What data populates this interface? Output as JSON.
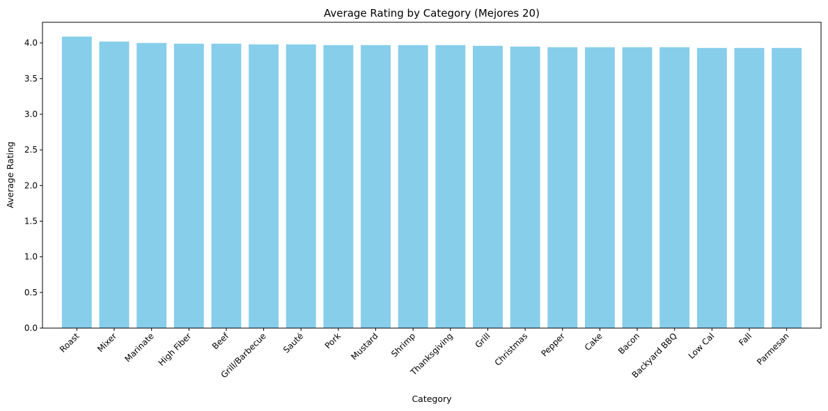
{
  "chart_data": {
    "type": "bar",
    "title": "Average Rating by Category (Mejores 20)",
    "xlabel": "Category",
    "ylabel": "Average Rating",
    "ylim": [
      0,
      4.29
    ],
    "yticks": [
      0.0,
      0.5,
      1.0,
      1.5,
      2.0,
      2.5,
      3.0,
      3.5,
      4.0
    ],
    "ytick_labels": [
      "0.0",
      "0.5",
      "1.0",
      "1.5",
      "2.0",
      "2.5",
      "3.0",
      "3.5",
      "4.0"
    ],
    "categories": [
      "Roast",
      "Mixer",
      "Marinate",
      "High Fiber",
      "Beef",
      "Grill/Barbecue",
      "Sauté",
      "Pork",
      "Mustard",
      "Shrimp",
      "Thanksgiving",
      "Grill",
      "Christmas",
      "Pepper",
      "Cake",
      "Bacon",
      "Backyard BBQ",
      "Low Cal",
      "Fall",
      "Parmesan"
    ],
    "values": [
      4.09,
      4.02,
      4.0,
      3.99,
      3.99,
      3.98,
      3.98,
      3.97,
      3.97,
      3.97,
      3.97,
      3.96,
      3.95,
      3.94,
      3.94,
      3.94,
      3.94,
      3.93,
      3.93,
      3.93
    ],
    "bar_color": "#87ceeb",
    "grid": false,
    "legend": false
  }
}
